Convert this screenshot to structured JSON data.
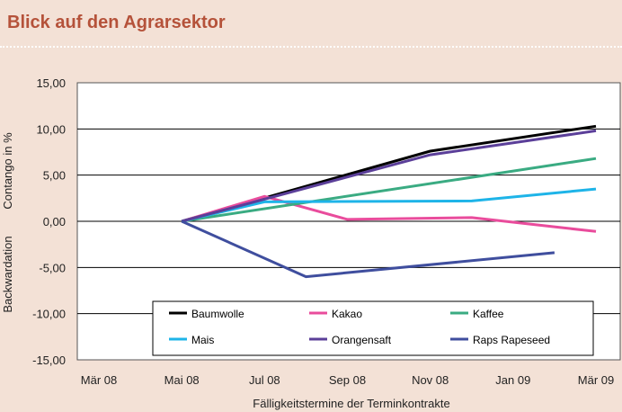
{
  "header": {
    "title": "Blick auf den Agrarsektor"
  },
  "chart_data": {
    "type": "line",
    "title": "Blick auf den Agrarsektor",
    "xlabel": "Fälligkeitstermine der Terminkontrakte",
    "ylabel_top": "Contango in %",
    "ylabel_bottom": "Backwardation",
    "x_ticks": [
      "Mär 08",
      "Mai 08",
      "Jul 08",
      "Sep 08",
      "Nov 08",
      "Jan 09",
      "Mär 09"
    ],
    "y_ticks": [
      "15,00",
      "10,00",
      "5,00",
      "0,00",
      "-5,00",
      "-10,00",
      "-15,00"
    ],
    "ylim": [
      -15,
      15
    ],
    "grid": "horizontal",
    "legend_position": "bottom-inside",
    "series": [
      {
        "name": "Baumwolle",
        "color": "#000000",
        "x": [
          "Mai 08",
          "Nov 08",
          "Mär 09"
        ],
        "values": [
          0.0,
          7.6,
          10.3
        ]
      },
      {
        "name": "Kakao",
        "color": "#e94c9c",
        "x": [
          "Mai 08",
          "Jul 08",
          "Sep 08",
          "Dez 08",
          "Mär 09"
        ],
        "values": [
          0.0,
          2.7,
          0.2,
          0.4,
          -1.1
        ]
      },
      {
        "name": "Kaffee",
        "color": "#3aab82",
        "x": [
          "Mai 08",
          "Mär 09"
        ],
        "values": [
          0.0,
          6.8
        ]
      },
      {
        "name": "Mais",
        "color": "#1eb4e8",
        "x": [
          "Mai 08",
          "Jul 08",
          "Dez 08",
          "Mär 09"
        ],
        "values": [
          0.0,
          2.1,
          2.2,
          3.5
        ]
      },
      {
        "name": "Orangensaft",
        "color": "#5b3f99",
        "x": [
          "Mai 08",
          "Nov 08",
          "Mär 09"
        ],
        "values": [
          0.0,
          7.2,
          9.8
        ]
      },
      {
        "name": "Raps Rapeseed",
        "color": "#3f4e9e",
        "x": [
          "Mai 08",
          "Aug 08",
          "Feb 09"
        ],
        "values": [
          0.0,
          -6.0,
          -3.4
        ]
      }
    ]
  }
}
